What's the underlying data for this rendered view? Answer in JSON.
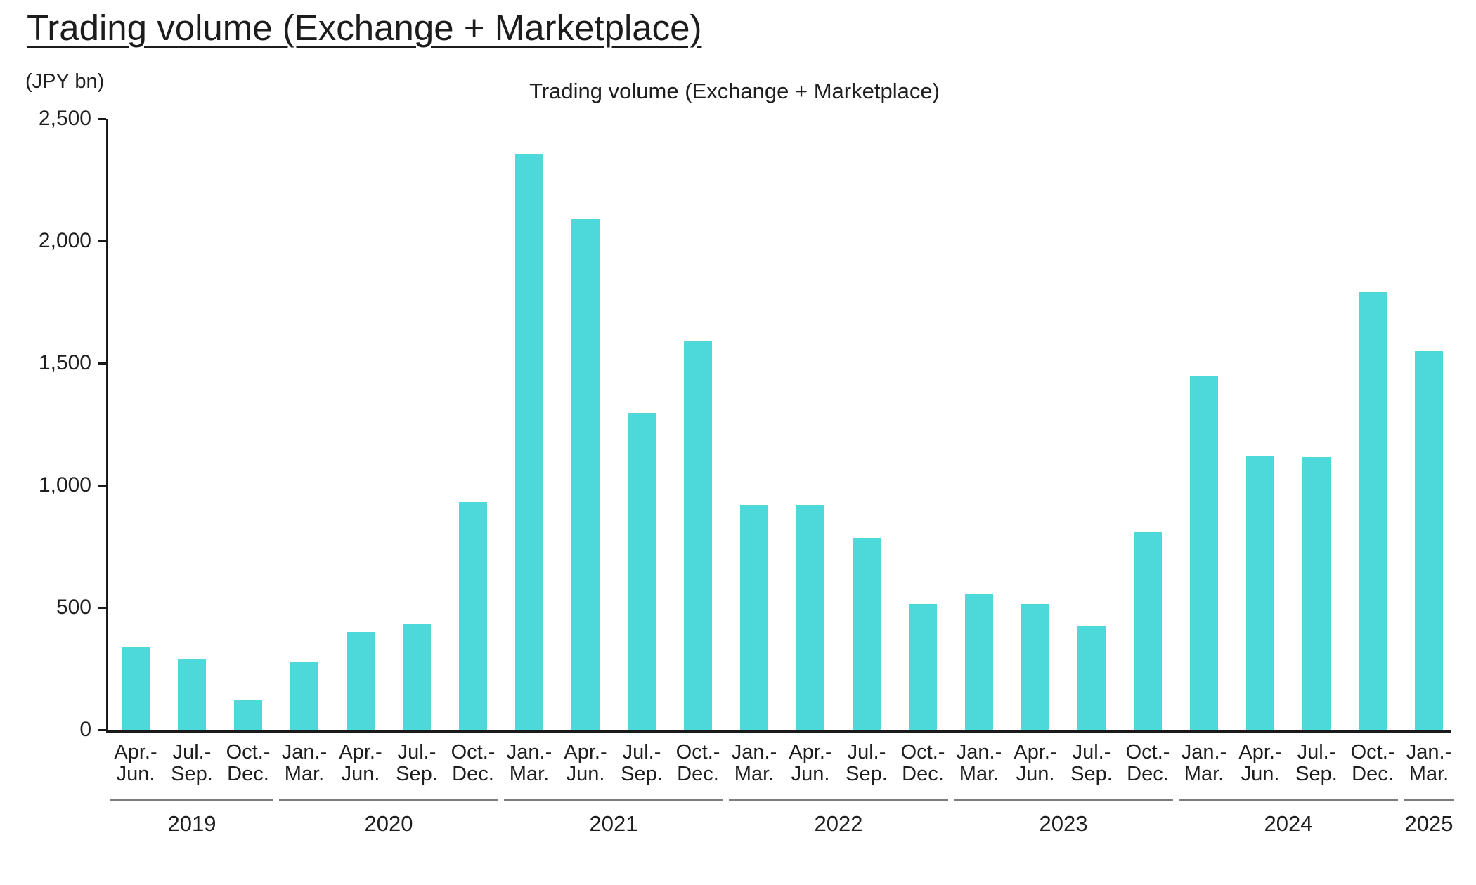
{
  "page": {
    "header_title": "Trading volume (Exchange + Marketplace)"
  },
  "chart_data": {
    "type": "bar",
    "title": "Trading volume (Exchange + Marketplace)",
    "unit_label": "(JPY bn)",
    "xlabel": "",
    "ylabel": "(JPY bn)",
    "ylim": [
      0,
      2500
    ],
    "yticks": [
      0,
      500,
      1000,
      1500,
      2000,
      2500
    ],
    "ytick_labels": [
      "0",
      "500",
      "1,000",
      "1,500",
      "2,000",
      "2,500"
    ],
    "grid": false,
    "legend": false,
    "bar_color": "#4dd8da",
    "categories": [
      {
        "top": "Apr.-",
        "bottom": "Jun."
      },
      {
        "top": "Jul.-",
        "bottom": "Sep."
      },
      {
        "top": "Oct.-",
        "bottom": "Dec."
      },
      {
        "top": "Jan.-",
        "bottom": "Mar."
      },
      {
        "top": "Apr.-",
        "bottom": "Jun."
      },
      {
        "top": "Jul.-",
        "bottom": "Sep."
      },
      {
        "top": "Oct.-",
        "bottom": "Dec."
      },
      {
        "top": "Jan.-",
        "bottom": "Mar."
      },
      {
        "top": "Apr.-",
        "bottom": "Jun."
      },
      {
        "top": "Jul.-",
        "bottom": "Sep."
      },
      {
        "top": "Oct.-",
        "bottom": "Dec."
      },
      {
        "top": "Jan.-",
        "bottom": "Mar."
      },
      {
        "top": "Apr.-",
        "bottom": "Jun."
      },
      {
        "top": "Jul.-",
        "bottom": "Sep."
      },
      {
        "top": "Oct.-",
        "bottom": "Dec."
      },
      {
        "top": "Jan.-",
        "bottom": "Mar."
      },
      {
        "top": "Apr.-",
        "bottom": "Jun."
      },
      {
        "top": "Jul.-",
        "bottom": "Sep."
      },
      {
        "top": "Oct.-",
        "bottom": "Dec."
      },
      {
        "top": "Jan.-",
        "bottom": "Mar."
      },
      {
        "top": "Apr.-",
        "bottom": "Jun."
      },
      {
        "top": "Jul.-",
        "bottom": "Sep."
      },
      {
        "top": "Oct.-",
        "bottom": "Dec."
      },
      {
        "top": "Jan.-",
        "bottom": "Mar."
      }
    ],
    "values": [
      340,
      290,
      120,
      275,
      400,
      435,
      930,
      2355,
      2090,
      1295,
      1590,
      920,
      920,
      785,
      515,
      555,
      515,
      425,
      810,
      1445,
      1120,
      1115,
      1790,
      1550
    ],
    "year_groups": [
      {
        "label": "2019",
        "count": 3
      },
      {
        "label": "2020",
        "count": 4
      },
      {
        "label": "2021",
        "count": 4
      },
      {
        "label": "2022",
        "count": 4
      },
      {
        "label": "2023",
        "count": 4
      },
      {
        "label": "2024",
        "count": 4
      },
      {
        "label": "2025",
        "count": 1
      }
    ]
  }
}
